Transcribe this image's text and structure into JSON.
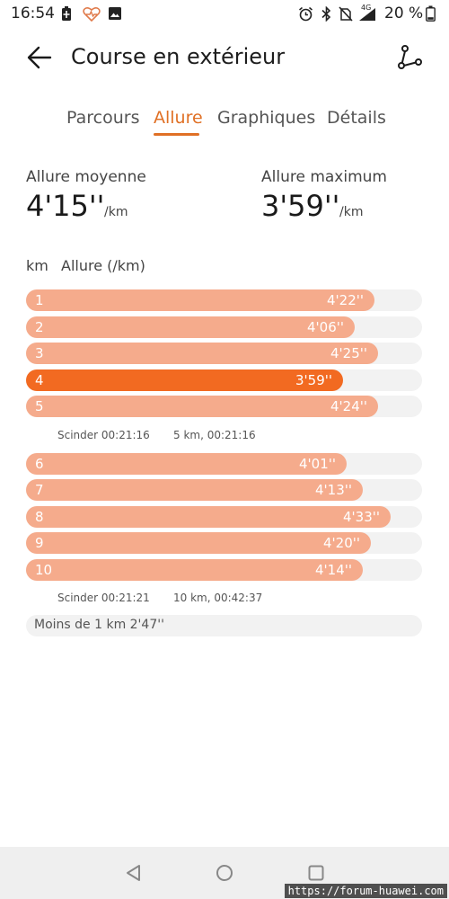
{
  "status_bar": {
    "time": "16:54",
    "icons": [
      "battery-saver-icon",
      "health-icon",
      "image-icon",
      "alarm-icon",
      "bluetooth-icon",
      "no-sim-icon",
      "signal-4g-icon"
    ],
    "network_label": "4G",
    "battery": "20 %"
  },
  "app_bar": {
    "title": "Course en extérieur"
  },
  "tabs": [
    {
      "label": "Parcours",
      "active": false
    },
    {
      "label": "Allure",
      "active": true
    },
    {
      "label": "Graphiques",
      "active": false
    },
    {
      "label": "Détails",
      "active": false
    }
  ],
  "summary": {
    "avg_label": "Allure moyenne",
    "avg_value": "4'15''",
    "avg_unit": "/km",
    "max_label": "Allure maximum",
    "max_value": "3'59''",
    "max_unit": "/km"
  },
  "table": {
    "col_km": "km",
    "col_pace": "Allure (/km)",
    "rows": [
      {
        "km": "1",
        "pace": "4'22''",
        "fill": 0.88,
        "best": false
      },
      {
        "km": "2",
        "pace": "4'06''",
        "fill": 0.83,
        "best": false
      },
      {
        "km": "3",
        "pace": "4'25''",
        "fill": 0.89,
        "best": false
      },
      {
        "km": "4",
        "pace": "3'59''",
        "fill": 0.8,
        "best": true
      },
      {
        "km": "5",
        "pace": "4'24''",
        "fill": 0.89,
        "best": false
      },
      {
        "km": "6",
        "pace": "4'01''",
        "fill": 0.81,
        "best": false
      },
      {
        "km": "7",
        "pace": "4'13''",
        "fill": 0.85,
        "best": false
      },
      {
        "km": "8",
        "pace": "4'33''",
        "fill": 0.92,
        "best": false
      },
      {
        "km": "9",
        "pace": "4'20''",
        "fill": 0.87,
        "best": false
      },
      {
        "km": "10",
        "pace": "4'14''",
        "fill": 0.85,
        "best": false
      }
    ],
    "splits": [
      {
        "split": "Scinder 00:21:16",
        "cumulative": "5 km, 00:21:16"
      },
      {
        "split": "Scinder 00:21:21",
        "cumulative": "10 km, 00:42:37"
      }
    ],
    "less_than_km": "Moins de 1 km 2'47''"
  },
  "nav_bar": {
    "buttons": [
      "back-nav-icon",
      "home-nav-icon",
      "recents-nav-icon"
    ]
  },
  "watermark": "https://forum-huawei.com",
  "colors": {
    "accent": "#e07025",
    "bar": "#f5ab8c",
    "bar_best": "#f26a21",
    "track": "#f2f2f2"
  }
}
